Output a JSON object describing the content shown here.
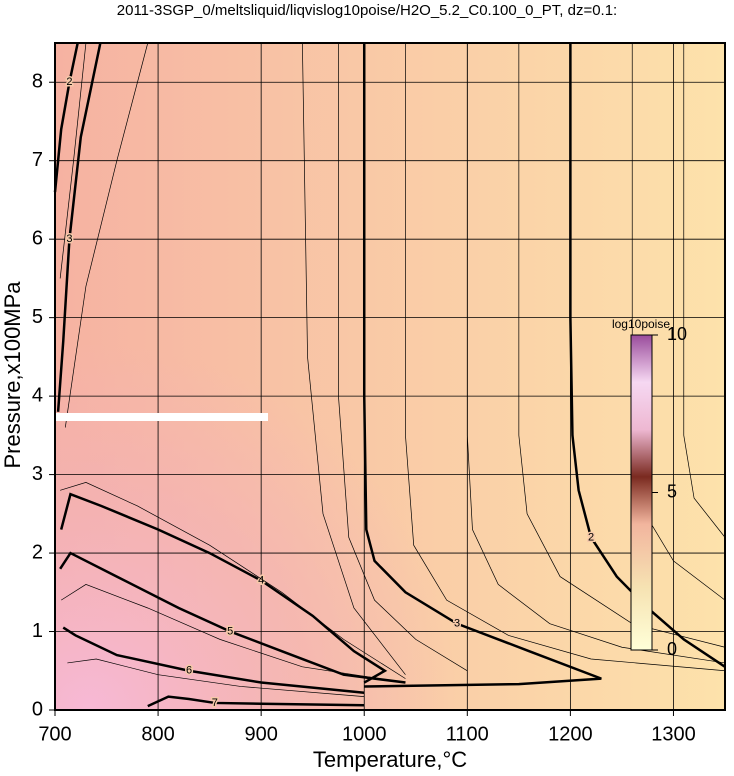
{
  "chart_data": {
    "type": "contour",
    "title": "2011-3SGP_0/meltsliquid/liqvislog10poise/H2O_5.2_C0.100_0_PT, dz=0.1:",
    "x_label": "Temperature,°C",
    "y_label": "Pressure,x100MPa",
    "xlim": [
      700,
      1350
    ],
    "ylim": [
      0,
      8.5
    ],
    "xticks": [
      700,
      800,
      900,
      1000,
      1100,
      1200,
      1300
    ],
    "yticks": [
      0,
      1,
      2,
      3,
      4,
      5,
      6,
      7,
      8
    ],
    "grid": true,
    "contours": [
      {
        "level": 2,
        "labeled": true,
        "x": [
          1200,
          1200,
          1202,
          1208,
          1220,
          1245,
          1275,
          1310,
          1350
        ],
        "y": [
          8.5,
          5,
          3.5,
          2.8,
          2.2,
          1.7,
          1.3,
          0.9,
          0.55
        ]
      },
      {
        "level": 3,
        "labeled": true,
        "x": [
          1000,
          1000,
          1002,
          1010,
          1040,
          1090,
          1160,
          1230,
          1150,
          1000
        ],
        "y": [
          8.5,
          4,
          2.3,
          1.9,
          1.5,
          1.1,
          0.75,
          0.4,
          0.33,
          0.3
        ]
      },
      {
        "level": 4,
        "labeled": true,
        "x": [
          706,
          715,
          745,
          800,
          850,
          900,
          950,
          990,
          1020,
          1000
        ],
        "y": [
          2.3,
          2.75,
          2.6,
          2.3,
          2.0,
          1.65,
          1.2,
          0.75,
          0.5,
          0.35
        ]
      },
      {
        "level": 5,
        "labeled": true,
        "x": [
          705,
          715,
          760,
          820,
          870,
          920,
          980,
          1040
        ],
        "y": [
          1.8,
          2.0,
          1.7,
          1.3,
          1.0,
          0.75,
          0.45,
          0.35
        ]
      },
      {
        "level": 6,
        "labeled": true,
        "x": [
          708,
          720,
          760,
          830,
          900,
          1000
        ],
        "y": [
          1.05,
          0.95,
          0.7,
          0.5,
          0.35,
          0.22
        ]
      },
      {
        "level": 7,
        "labeled": true,
        "x": [
          790,
          810,
          830,
          855,
          900,
          1000
        ],
        "y": [
          0.05,
          0.17,
          0.14,
          0.09,
          0.08,
          0.06
        ]
      },
      {
        "level": 3,
        "labeled": true,
        "x": [
          703,
          708,
          714,
          725,
          744
        ],
        "y": [
          3.8,
          4.7,
          6.0,
          7.3,
          8.5
        ]
      },
      {
        "level": 2,
        "labeled": true,
        "x": [
          700,
          706,
          714,
          722
        ],
        "y": [
          6.6,
          7.4,
          8.0,
          8.5
        ]
      },
      {
        "level": 2.5,
        "labeled": false,
        "x": [
          1100,
          1100,
          1105,
          1130,
          1180,
          1250,
          1350
        ],
        "y": [
          8.5,
          3.5,
          2.3,
          1.6,
          1.1,
          0.8,
          0.6
        ]
      },
      {
        "level": 2.2,
        "labeled": false,
        "x": [
          1150,
          1150,
          1158,
          1190,
          1260,
          1350
        ],
        "y": [
          8.5,
          3.5,
          2.5,
          1.7,
          1.1,
          0.8
        ]
      },
      {
        "level": 1.8,
        "labeled": false,
        "x": [
          1260,
          1260,
          1268,
          1300,
          1350
        ],
        "y": [
          8.5,
          3.5,
          2.6,
          1.9,
          1.4
        ]
      },
      {
        "level": 1.6,
        "labeled": false,
        "x": [
          1310,
          1310,
          1320,
          1350
        ],
        "y": [
          8.5,
          3.5,
          2.7,
          2.2
        ]
      },
      {
        "level": 2.8,
        "labeled": false,
        "x": [
          1040,
          1040,
          1048,
          1080,
          1140,
          1220,
          1350
        ],
        "y": [
          8.5,
          3.5,
          2.1,
          1.4,
          0.95,
          0.65,
          0.5
        ]
      },
      {
        "level": 3.2,
        "labeled": false,
        "x": [
          975,
          975,
          985,
          1010,
          1050,
          1100
        ],
        "y": [
          8.5,
          4,
          2.2,
          1.4,
          0.9,
          0.5
        ]
      },
      {
        "level": 3.5,
        "labeled": false,
        "x": [
          940,
          945,
          960,
          990,
          1040
        ],
        "y": [
          8.5,
          4.5,
          2.5,
          1.3,
          0.45
        ]
      },
      {
        "level": 4.5,
        "labeled": false,
        "x": [
          705,
          730,
          780,
          850,
          920,
          980,
          1040
        ],
        "y": [
          2.8,
          2.9,
          2.6,
          2.1,
          1.5,
          0.9,
          0.4
        ]
      },
      {
        "level": 5.5,
        "labeled": false,
        "x": [
          706,
          730,
          790,
          860,
          940,
          1040
        ],
        "y": [
          1.4,
          1.6,
          1.3,
          0.9,
          0.55,
          0.35
        ]
      },
      {
        "level": 6.5,
        "labeled": false,
        "x": [
          712,
          740,
          800,
          880,
          1000
        ],
        "y": [
          0.6,
          0.65,
          0.45,
          0.3,
          0.17
        ]
      },
      {
        "level": 2.5,
        "labeled": false,
        "x": [
          705,
          718,
          730
        ],
        "y": [
          5.5,
          7.0,
          8.5
        ]
      },
      {
        "level": 3.5,
        "labeled": false,
        "x": [
          710,
          730,
          760,
          790
        ],
        "y": [
          3.6,
          5.4,
          7.0,
          8.5
        ]
      }
    ],
    "colorbar": {
      "label": "log10poise",
      "clim": [
        0,
        10
      ],
      "ticks": [
        0,
        5,
        10
      ],
      "colormap": [
        [
          0,
          "#ffffd8"
        ],
        [
          2,
          "#f6e2b2"
        ],
        [
          4,
          "#f2b59e"
        ],
        [
          5.5,
          "#7a2a20"
        ],
        [
          7,
          "#eeb8d2"
        ],
        [
          8.5,
          "#f6d8f2"
        ],
        [
          10,
          "#9a4c9c"
        ]
      ]
    }
  }
}
